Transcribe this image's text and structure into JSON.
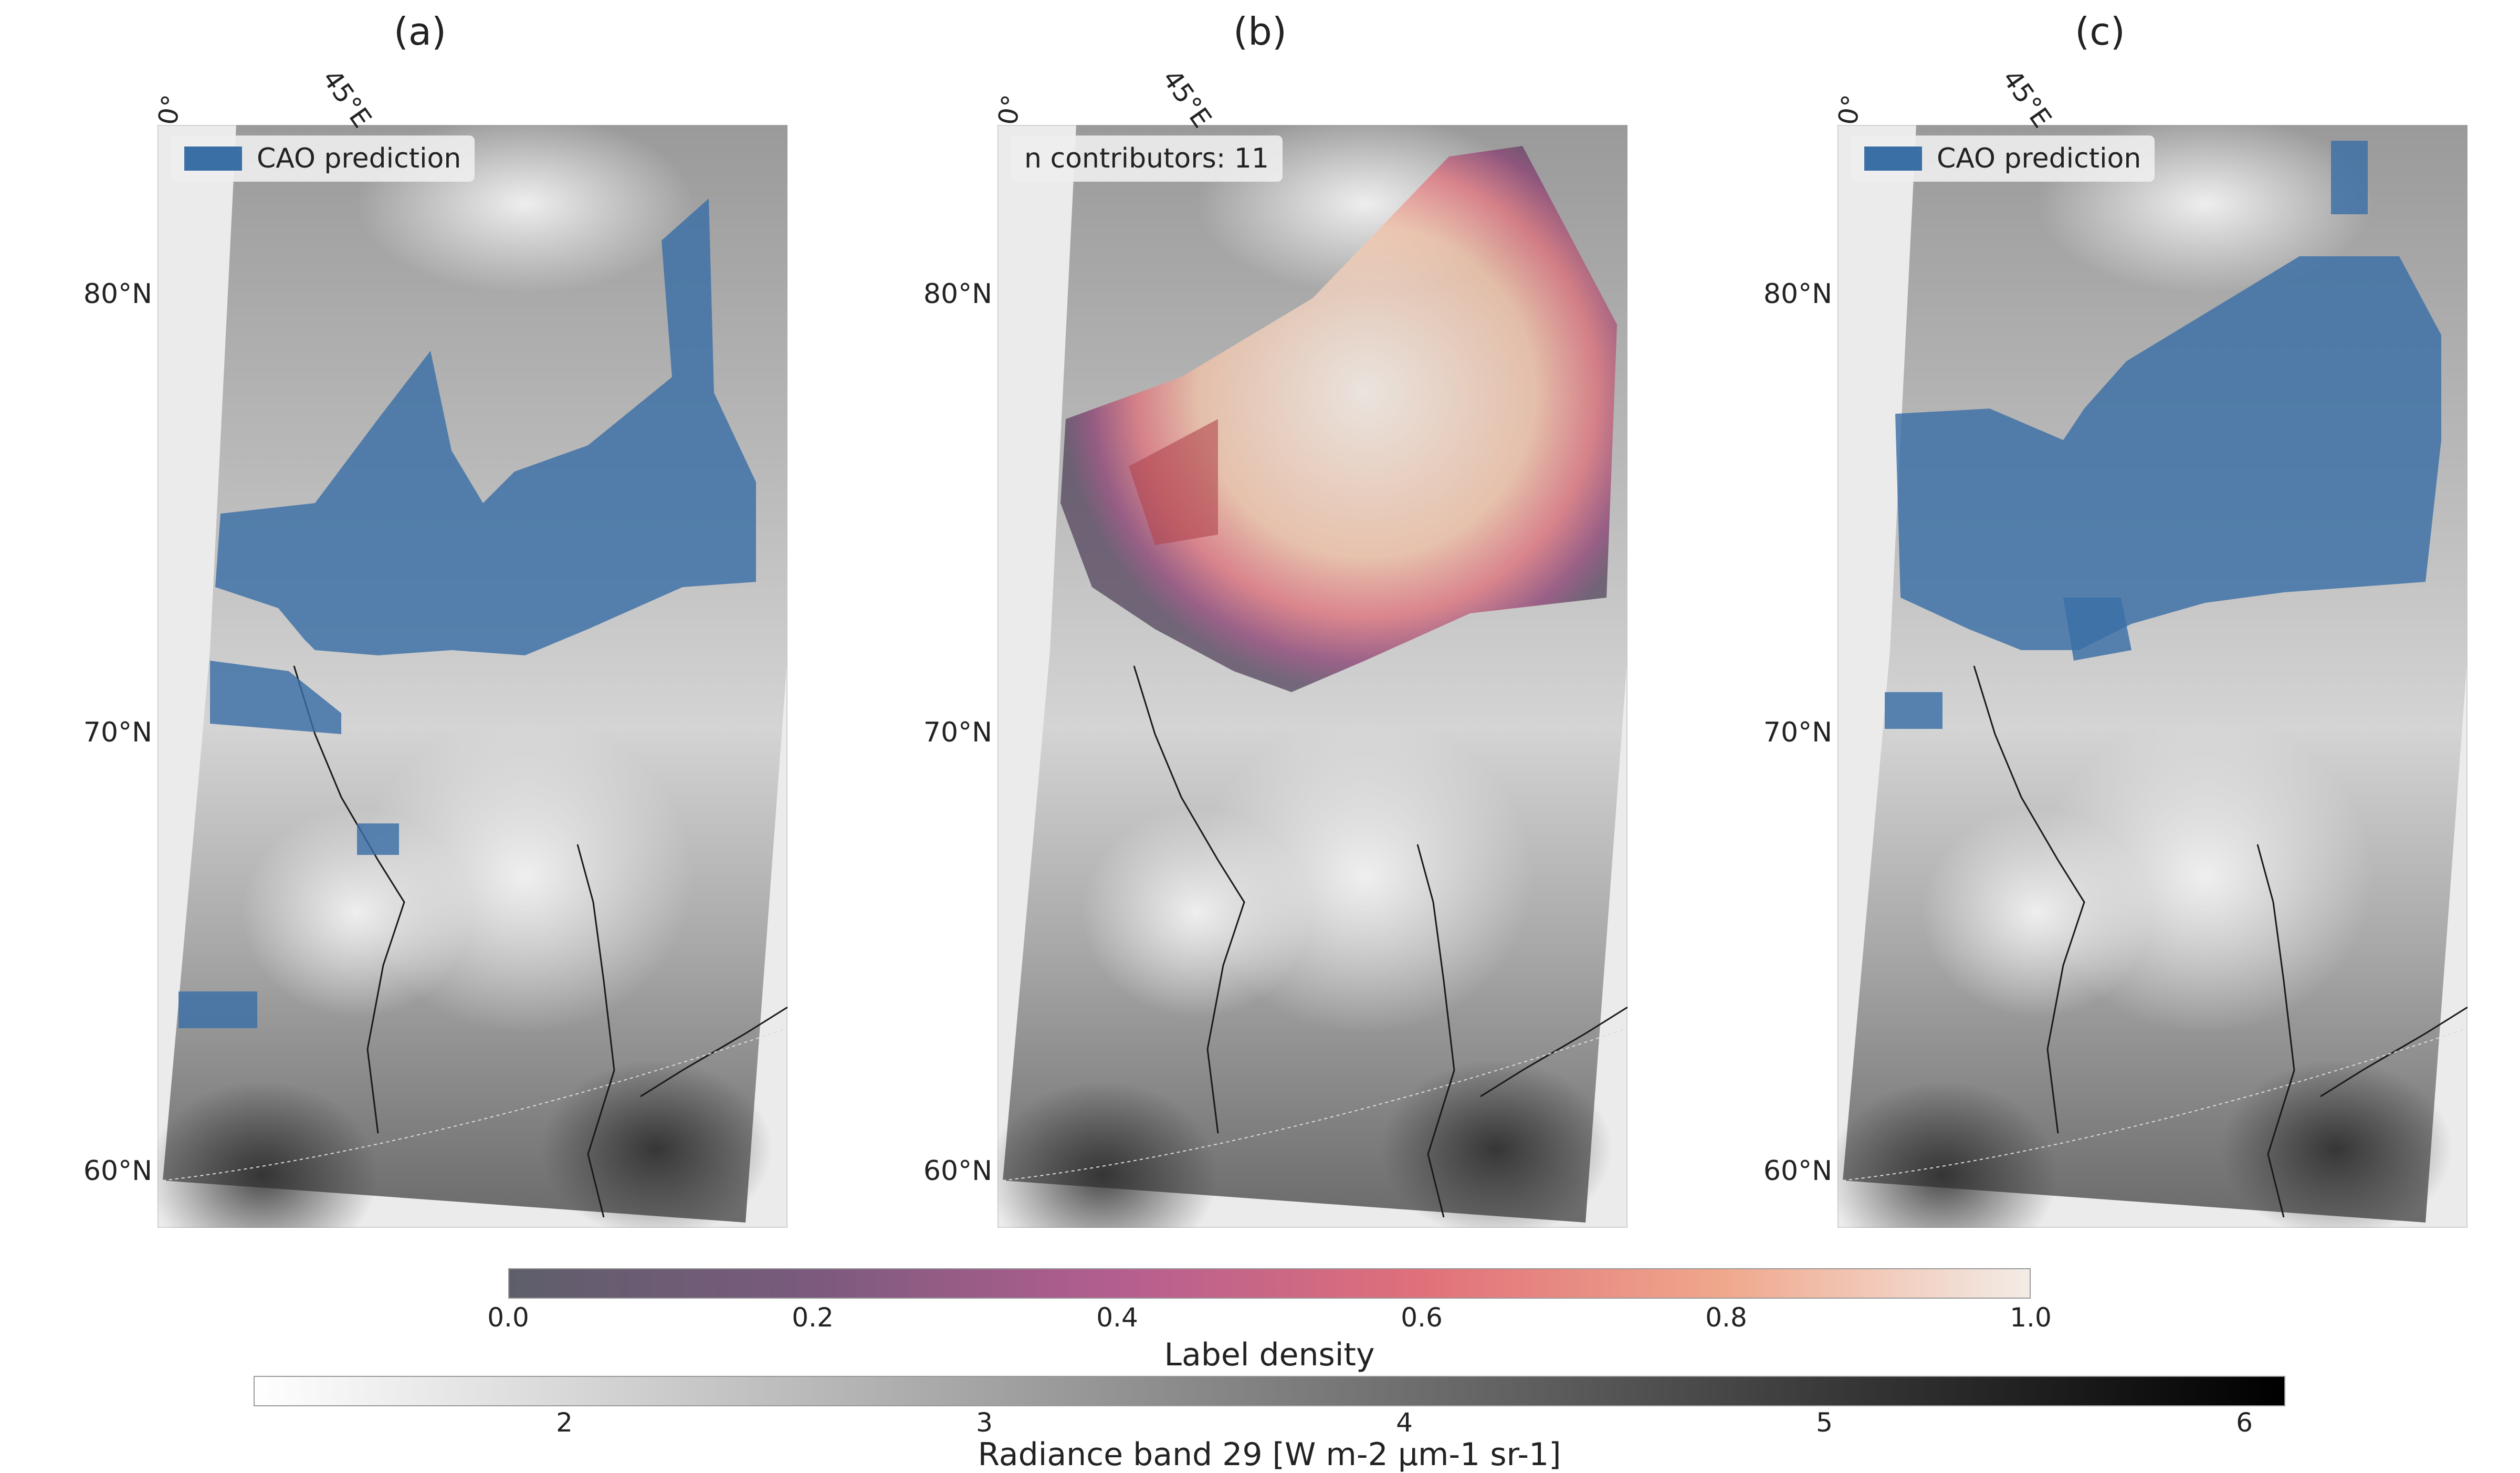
{
  "panels": [
    {
      "title": "(a)",
      "legend": "CAO prediction"
    },
    {
      "title": "(b)",
      "legend": "n contributors: 11"
    },
    {
      "title": "(c)",
      "legend": "CAO prediction"
    }
  ],
  "lat_labels": [
    "80°N",
    "70°N",
    "60°N"
  ],
  "lon_labels": [
    "0°",
    "45°E"
  ],
  "colors": {
    "cao": "#3a6fa6",
    "background": "#ebebeb"
  },
  "colorbars": {
    "density": {
      "label": "Label density",
      "ticks": [
        "0.0",
        "0.2",
        "0.4",
        "0.6",
        "0.8",
        "1.0"
      ]
    },
    "radiance": {
      "label": "Radiance band 29 [W m-2 μm-1 sr-1]",
      "ticks": [
        "2",
        "3",
        "4",
        "5",
        "6"
      ]
    }
  }
}
